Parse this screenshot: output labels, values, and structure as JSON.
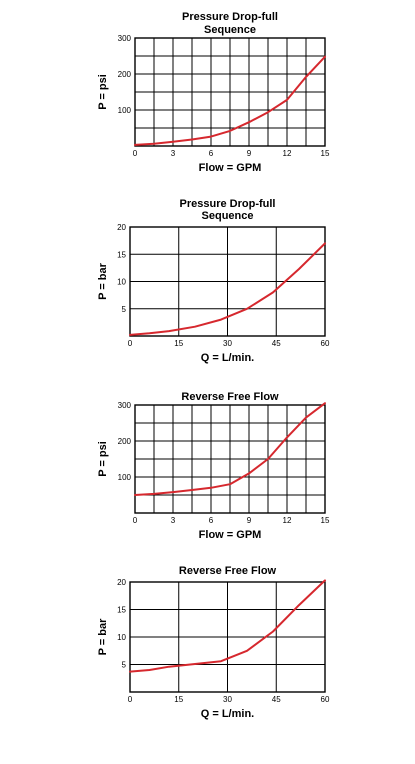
{
  "colors": {
    "curve": "#d6282e",
    "grid": "#000000",
    "background": "#ffffff"
  },
  "chart_data": [
    {
      "type": "line",
      "title": [
        "Pressure Drop-full",
        "Sequence"
      ],
      "xlabel": "Flow = GPM",
      "ylabel": "P = psi",
      "xlim": [
        0,
        15
      ],
      "ylim": [
        0,
        300
      ],
      "xticks": [
        0,
        3,
        6,
        9,
        12,
        15
      ],
      "yticks": [
        100,
        200,
        300
      ],
      "xgrid": [
        0,
        1.5,
        3,
        4.5,
        6,
        7.5,
        9,
        10.5,
        12,
        13.5,
        15
      ],
      "ygrid": [
        0,
        50,
        100,
        150,
        200,
        250,
        300
      ],
      "grid": true,
      "series": [
        {
          "x": [
            0,
            1.5,
            3,
            4.5,
            6,
            7.5,
            9,
            10.5,
            12,
            13.5,
            15
          ],
          "y": [
            3,
            6,
            12,
            18,
            26,
            42,
            66,
            94,
            128,
            192,
            248
          ]
        }
      ]
    },
    {
      "type": "line",
      "title": [
        "Pressure Drop-full",
        "Sequence"
      ],
      "xlabel": "Q = L/min.",
      "ylabel": "P = bar",
      "xlim": [
        0,
        60
      ],
      "ylim": [
        0,
        20
      ],
      "xticks": [
        0,
        15,
        30,
        45,
        60
      ],
      "yticks": [
        5,
        10,
        15,
        20
      ],
      "xgrid": [
        0,
        15,
        30,
        45,
        60
      ],
      "ygrid": [
        0,
        5,
        10,
        15,
        20
      ],
      "grid": true,
      "series": [
        {
          "x": [
            0,
            6,
            12,
            20,
            28,
            36,
            44,
            52,
            60
          ],
          "y": [
            0.2,
            0.5,
            0.9,
            1.7,
            3.0,
            5.0,
            8.0,
            12.3,
            17.0
          ]
        }
      ]
    },
    {
      "type": "line",
      "title": [
        "Reverse Free Flow"
      ],
      "xlabel": "Flow = GPM",
      "ylabel": "P = psi",
      "xlim": [
        0,
        15
      ],
      "ylim": [
        0,
        300
      ],
      "xticks": [
        0,
        3,
        6,
        9,
        12,
        15
      ],
      "yticks": [
        100,
        200,
        300
      ],
      "xgrid": [
        0,
        1.5,
        3,
        4.5,
        6,
        7.5,
        9,
        10.5,
        12,
        13.5,
        15
      ],
      "ygrid": [
        0,
        50,
        100,
        150,
        200,
        250,
        300
      ],
      "grid": true,
      "series": [
        {
          "x": [
            0,
            1.5,
            3,
            4.5,
            6,
            7.5,
            9,
            10.5,
            12,
            13.5,
            15
          ],
          "y": [
            50,
            53,
            58,
            64,
            70,
            80,
            110,
            150,
            210,
            265,
            305
          ]
        }
      ]
    },
    {
      "type": "line",
      "title": [
        "Reverse Free Flow"
      ],
      "xlabel": "Q = L/min.",
      "ylabel": "P = bar",
      "xlim": [
        0,
        60
      ],
      "ylim": [
        0,
        20
      ],
      "xticks": [
        0,
        15,
        30,
        45,
        60
      ],
      "yticks": [
        5,
        10,
        15,
        20
      ],
      "xgrid": [
        0,
        15,
        30,
        45,
        60
      ],
      "ygrid": [
        0,
        5,
        10,
        15,
        20
      ],
      "grid": true,
      "series": [
        {
          "x": [
            0,
            6,
            12,
            20,
            28,
            36,
            44,
            52,
            60
          ],
          "y": [
            3.7,
            4.0,
            4.6,
            5.1,
            5.6,
            7.5,
            11.0,
            15.8,
            20.3
          ]
        }
      ]
    }
  ]
}
